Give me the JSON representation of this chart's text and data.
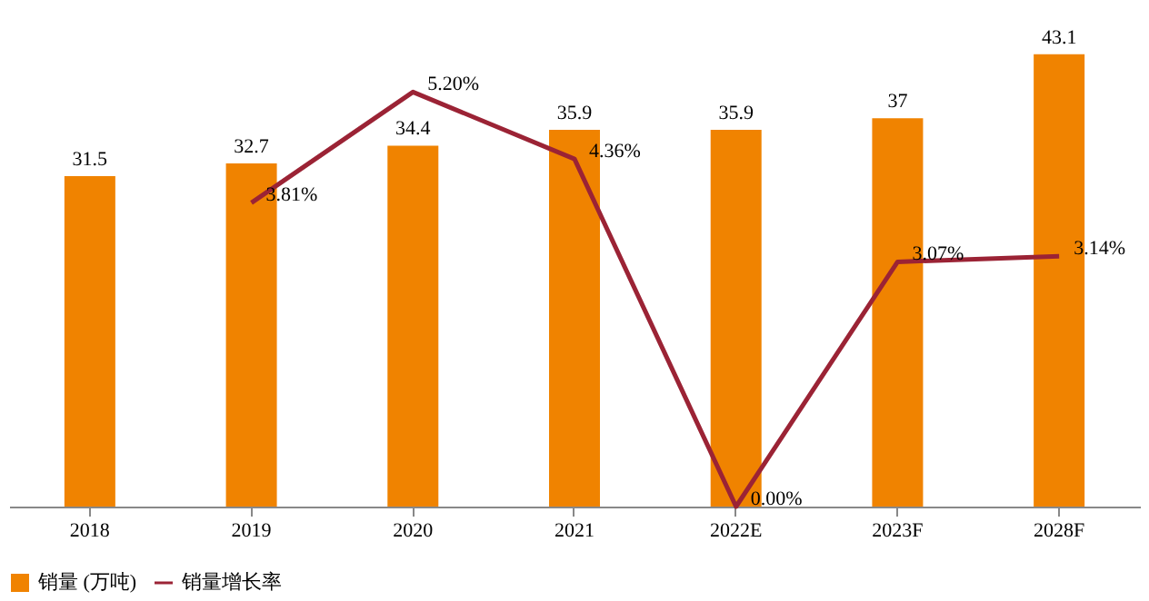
{
  "chart_data": {
    "type": "bar",
    "categories": [
      "2018",
      "2019",
      "2020",
      "2021",
      "2022E",
      "2023F",
      "2028F"
    ],
    "series": [
      {
        "name": "销量 (万吨)",
        "color": "#f08300",
        "values": [
          31.5,
          32.7,
          34.4,
          35.9,
          35.9,
          37,
          43.1
        ],
        "value_labels": [
          "31.5",
          "32.7",
          "34.4",
          "35.9",
          "35.9",
          "37",
          "43.1"
        ]
      },
      {
        "name": "销量增长率",
        "type": "line",
        "axis": "y2",
        "color": "#9b2335",
        "values": [
          null,
          3.81,
          5.2,
          4.36,
          0.0,
          3.07,
          3.14
        ],
        "value_labels": [
          null,
          "3.81%",
          "5.20%",
          "4.36%",
          "0.00%",
          "3.07%",
          "3.14%"
        ]
      }
    ],
    "tick_labels": "x",
    "legend": "bottom",
    "grid": false,
    "marker": "none",
    "line_style": "solid"
  }
}
